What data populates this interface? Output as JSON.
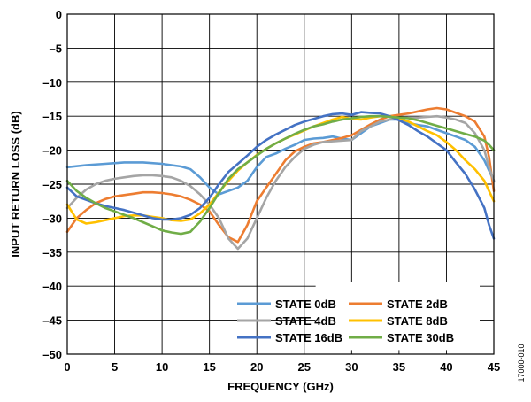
{
  "figure_id": "17000-010",
  "chart_data": {
    "type": "line",
    "xlabel": "FREQUENCY (GHz)",
    "ylabel": "INPUT RETURN LOSS (dB)",
    "xlim": [
      0,
      45
    ],
    "ylim": [
      -50,
      0
    ],
    "xticks": [
      0,
      5,
      10,
      15,
      20,
      25,
      30,
      35,
      40,
      45
    ],
    "yticks": [
      0,
      -5,
      -10,
      -15,
      -20,
      -25,
      -30,
      -35,
      -40,
      -45,
      -50
    ],
    "grid": true,
    "legend_position": "bottom-right",
    "series": [
      {
        "name": "STATE 0dB",
        "color": "#5b9bd5",
        "points": [
          [
            0,
            -22.5
          ],
          [
            2,
            -22.2
          ],
          [
            4,
            -22
          ],
          [
            6,
            -21.8
          ],
          [
            8,
            -21.8
          ],
          [
            10,
            -22
          ],
          [
            12,
            -22.4
          ],
          [
            13,
            -22.8
          ],
          [
            14,
            -24
          ],
          [
            15,
            -25.5
          ],
          [
            16,
            -26.5
          ],
          [
            17,
            -26
          ],
          [
            18,
            -25.5
          ],
          [
            19,
            -24.5
          ],
          [
            20,
            -22.5
          ],
          [
            21,
            -21
          ],
          [
            22,
            -20.5
          ],
          [
            23,
            -19.8
          ],
          [
            24,
            -19.2
          ],
          [
            25,
            -18.5
          ],
          [
            26,
            -18.3
          ],
          [
            27,
            -18.2
          ],
          [
            28,
            -18
          ],
          [
            29,
            -18.3
          ],
          [
            30,
            -18.5
          ],
          [
            31,
            -17.5
          ],
          [
            32,
            -16.5
          ],
          [
            33,
            -16
          ],
          [
            34,
            -15.5
          ],
          [
            35,
            -15.5
          ],
          [
            36,
            -16
          ],
          [
            37,
            -16.3
          ],
          [
            38,
            -16.5
          ],
          [
            39,
            -17
          ],
          [
            40,
            -17.5
          ],
          [
            41,
            -18
          ],
          [
            42,
            -18.5
          ],
          [
            43,
            -19.5
          ],
          [
            44,
            -21.5
          ],
          [
            44.5,
            -23
          ],
          [
            45,
            -24.5
          ]
        ]
      },
      {
        "name": "STATE 2dB",
        "color": "#ed7d31",
        "points": [
          [
            0,
            -32
          ],
          [
            1,
            -30
          ],
          [
            2,
            -28.8
          ],
          [
            3,
            -27.8
          ],
          [
            4,
            -27.2
          ],
          [
            5,
            -26.8
          ],
          [
            6,
            -26.6
          ],
          [
            7,
            -26.4
          ],
          [
            8,
            -26.2
          ],
          [
            9,
            -26.2
          ],
          [
            10,
            -26.3
          ],
          [
            11,
            -26.5
          ],
          [
            12,
            -26.8
          ],
          [
            13,
            -27.3
          ],
          [
            14,
            -28
          ],
          [
            15,
            -29
          ],
          [
            16,
            -31
          ],
          [
            17,
            -32.8
          ],
          [
            18,
            -33.5
          ],
          [
            19,
            -31
          ],
          [
            20,
            -27.5
          ],
          [
            21,
            -25.5
          ],
          [
            22,
            -23.5
          ],
          [
            23,
            -21.5
          ],
          [
            24,
            -20.2
          ],
          [
            25,
            -19.5
          ],
          [
            26,
            -19
          ],
          [
            27,
            -18.8
          ],
          [
            28,
            -18.5
          ],
          [
            29,
            -18.2
          ],
          [
            30,
            -17.8
          ],
          [
            31,
            -17
          ],
          [
            32,
            -16.2
          ],
          [
            33,
            -15.5
          ],
          [
            34,
            -15
          ],
          [
            35,
            -14.8
          ],
          [
            36,
            -14.6
          ],
          [
            37,
            -14.3
          ],
          [
            38,
            -14
          ],
          [
            39,
            -13.8
          ],
          [
            40,
            -14
          ],
          [
            41,
            -14.5
          ],
          [
            42,
            -15
          ],
          [
            43,
            -15.8
          ],
          [
            44,
            -18
          ],
          [
            44.5,
            -21
          ],
          [
            45,
            -26
          ]
        ]
      },
      {
        "name": "STATE 4dB",
        "color": "#a5a5a5",
        "points": [
          [
            0,
            -28.5
          ],
          [
            1,
            -27
          ],
          [
            2,
            -25.8
          ],
          [
            3,
            -25
          ],
          [
            4,
            -24.5
          ],
          [
            5,
            -24.2
          ],
          [
            6,
            -24
          ],
          [
            7,
            -23.8
          ],
          [
            8,
            -23.7
          ],
          [
            9,
            -23.7
          ],
          [
            10,
            -23.8
          ],
          [
            11,
            -24
          ],
          [
            12,
            -24.5
          ],
          [
            13,
            -25.3
          ],
          [
            14,
            -26.5
          ],
          [
            15,
            -28
          ],
          [
            16,
            -30
          ],
          [
            17,
            -33
          ],
          [
            18,
            -34.5
          ],
          [
            19,
            -33
          ],
          [
            20,
            -30
          ],
          [
            21,
            -27
          ],
          [
            22,
            -24.5
          ],
          [
            23,
            -22.5
          ],
          [
            24,
            -21
          ],
          [
            25,
            -19.8
          ],
          [
            26,
            -19.2
          ],
          [
            27,
            -18.8
          ],
          [
            28,
            -18.7
          ],
          [
            29,
            -18.6
          ],
          [
            30,
            -18.5
          ],
          [
            31,
            -17.2
          ],
          [
            32,
            -16.5
          ],
          [
            33,
            -15.8
          ],
          [
            34,
            -15.5
          ],
          [
            35,
            -15.3
          ],
          [
            36,
            -15.2
          ],
          [
            37,
            -15.2
          ],
          [
            38,
            -15.1
          ],
          [
            39,
            -15
          ],
          [
            40,
            -15.2
          ],
          [
            41,
            -15.5
          ],
          [
            42,
            -16
          ],
          [
            43,
            -17.5
          ],
          [
            44,
            -20
          ],
          [
            44.5,
            -22.5
          ],
          [
            45,
            -24.5
          ]
        ]
      },
      {
        "name": "STATE 8dB",
        "color": "#ffc000",
        "points": [
          [
            0,
            -28
          ],
          [
            1,
            -30.2
          ],
          [
            2,
            -30.8
          ],
          [
            3,
            -30.6
          ],
          [
            4,
            -30.3
          ],
          [
            5,
            -30
          ],
          [
            6,
            -29.7
          ],
          [
            7,
            -29.6
          ],
          [
            8,
            -29.6
          ],
          [
            9,
            -29.8
          ],
          [
            10,
            -30
          ],
          [
            11,
            -30.3
          ],
          [
            12,
            -30.4
          ],
          [
            13,
            -30.2
          ],
          [
            14,
            -29.3
          ],
          [
            15,
            -28
          ],
          [
            16,
            -26.2
          ],
          [
            17,
            -24.5
          ],
          [
            18,
            -23
          ],
          [
            19,
            -21.8
          ],
          [
            20,
            -20.7
          ],
          [
            21,
            -19.8
          ],
          [
            22,
            -19
          ],
          [
            23,
            -18.3
          ],
          [
            24,
            -17.7
          ],
          [
            25,
            -17.1
          ],
          [
            26,
            -16.5
          ],
          [
            27,
            -16
          ],
          [
            28,
            -15.5
          ],
          [
            29,
            -15.1
          ],
          [
            30,
            -15.4
          ],
          [
            31,
            -15.5
          ],
          [
            32,
            -15.2
          ],
          [
            33,
            -15
          ],
          [
            34,
            -15
          ],
          [
            35,
            -15.3
          ],
          [
            36,
            -15.8
          ],
          [
            37,
            -16.5
          ],
          [
            38,
            -17.2
          ],
          [
            39,
            -17.8
          ],
          [
            40,
            -18.8
          ],
          [
            41,
            -20
          ],
          [
            42,
            -21.5
          ],
          [
            43,
            -22.8
          ],
          [
            44,
            -24.5
          ],
          [
            44.5,
            -26
          ],
          [
            45,
            -27.5
          ]
        ]
      },
      {
        "name": "STATE 16dB",
        "color": "#4472c4",
        "points": [
          [
            0,
            -25.5
          ],
          [
            1,
            -26.8
          ],
          [
            2,
            -27.3
          ],
          [
            3,
            -27.8
          ],
          [
            4,
            -28.2
          ],
          [
            5,
            -28.5
          ],
          [
            6,
            -28.8
          ],
          [
            7,
            -29.2
          ],
          [
            8,
            -29.6
          ],
          [
            9,
            -30
          ],
          [
            10,
            -30.2
          ],
          [
            11,
            -30.2
          ],
          [
            12,
            -30
          ],
          [
            13,
            -29.5
          ],
          [
            14,
            -28.5
          ],
          [
            15,
            -27
          ],
          [
            16,
            -25
          ],
          [
            17,
            -23.2
          ],
          [
            18,
            -22
          ],
          [
            19,
            -20.8
          ],
          [
            20,
            -19.5
          ],
          [
            21,
            -18.5
          ],
          [
            22,
            -17.7
          ],
          [
            23,
            -17
          ],
          [
            24,
            -16.3
          ],
          [
            25,
            -15.8
          ],
          [
            26,
            -15.4
          ],
          [
            27,
            -15
          ],
          [
            28,
            -14.7
          ],
          [
            29,
            -14.6
          ],
          [
            30,
            -14.8
          ],
          [
            31,
            -14.4
          ],
          [
            32,
            -14.5
          ],
          [
            33,
            -14.6
          ],
          [
            34,
            -15
          ],
          [
            35,
            -15.6
          ],
          [
            36,
            -16.3
          ],
          [
            37,
            -17.2
          ],
          [
            38,
            -18
          ],
          [
            39,
            -19
          ],
          [
            40,
            -20
          ],
          [
            41,
            -21.8
          ],
          [
            42,
            -23.5
          ],
          [
            43,
            -25.8
          ],
          [
            44,
            -28.5
          ],
          [
            44.5,
            -31
          ],
          [
            45,
            -33
          ]
        ]
      },
      {
        "name": "STATE 30dB",
        "color": "#70ad47",
        "points": [
          [
            0,
            -24.5
          ],
          [
            1,
            -26
          ],
          [
            2,
            -27
          ],
          [
            3,
            -27.8
          ],
          [
            4,
            -28.5
          ],
          [
            5,
            -29
          ],
          [
            6,
            -29.5
          ],
          [
            7,
            -30
          ],
          [
            8,
            -30.6
          ],
          [
            9,
            -31.2
          ],
          [
            10,
            -31.8
          ],
          [
            11,
            -32.1
          ],
          [
            12,
            -32.3
          ],
          [
            13,
            -32
          ],
          [
            14,
            -30.5
          ],
          [
            15,
            -28.5
          ],
          [
            16,
            -26.3
          ],
          [
            17,
            -24.2
          ],
          [
            18,
            -22.8
          ],
          [
            19,
            -21.8
          ],
          [
            20,
            -20.8
          ],
          [
            21,
            -19.8
          ],
          [
            22,
            -19
          ],
          [
            23,
            -18.3
          ],
          [
            24,
            -17.6
          ],
          [
            25,
            -17
          ],
          [
            26,
            -16.5
          ],
          [
            27,
            -16.2
          ],
          [
            28,
            -15.8
          ],
          [
            29,
            -15.5
          ],
          [
            30,
            -15.3
          ],
          [
            31,
            -15.1
          ],
          [
            32,
            -15
          ],
          [
            33,
            -15
          ],
          [
            34,
            -15.1
          ],
          [
            35,
            -15.2
          ],
          [
            36,
            -15.3
          ],
          [
            37,
            -15.6
          ],
          [
            38,
            -16
          ],
          [
            39,
            -16.4
          ],
          [
            40,
            -16.8
          ],
          [
            41,
            -17.2
          ],
          [
            42,
            -17.6
          ],
          [
            43,
            -18
          ],
          [
            44,
            -18.6
          ],
          [
            44.5,
            -19.2
          ],
          [
            45,
            -20
          ]
        ]
      }
    ]
  }
}
